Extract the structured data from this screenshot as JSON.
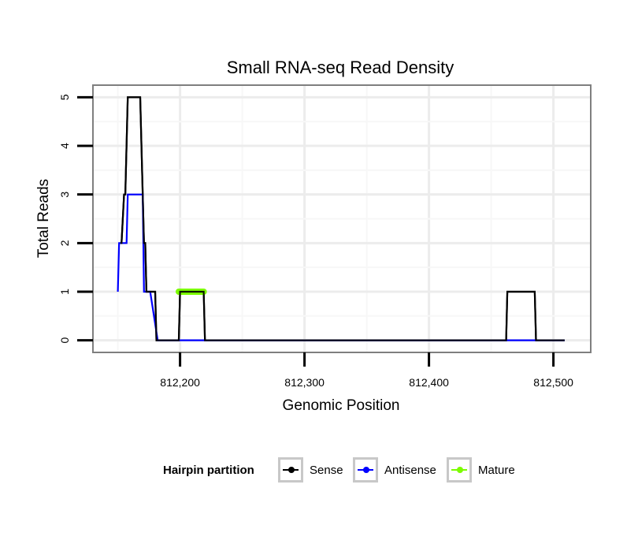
{
  "chart_data": {
    "type": "line",
    "title": "Small RNA-seq Read Density",
    "xlabel": "Genomic Position",
    "ylabel": "Total Reads",
    "xlim": [
      812130,
      812530
    ],
    "ylim": [
      -0.25,
      5.25
    ],
    "x_ticks": [
      812200,
      812300,
      812400,
      812500
    ],
    "x_tick_labels": [
      "812,200",
      "812,300",
      "812,400",
      "812,500"
    ],
    "y_ticks": [
      0,
      1,
      2,
      3,
      4,
      5
    ],
    "y_tick_labels": [
      "0",
      "1",
      "2",
      "3",
      "4",
      "5"
    ],
    "grid": true,
    "legend_position": "bottom",
    "legend_title": "Hairpin partition",
    "series": [
      {
        "name": "Sense",
        "color": "#000000",
        "x": [
          812152,
          812153,
          812155,
          812156,
          812158,
          812168,
          812170,
          812171,
          812172,
          812173,
          812180,
          812181,
          812182,
          812199,
          812200,
          812219,
          812220,
          812462,
          812463,
          812485,
          812486,
          812509
        ],
        "y": [
          2,
          2,
          3,
          3,
          5,
          5,
          3,
          2,
          2,
          1,
          1,
          0,
          0,
          0,
          1,
          1,
          0,
          0,
          1,
          1,
          0,
          0
        ]
      },
      {
        "name": "Antisense",
        "color": "#0000ff",
        "x": [
          812150,
          812151,
          812157,
          812158,
          812170,
          812171,
          812176,
          812182,
          812509
        ],
        "y": [
          1,
          2,
          2,
          3,
          3,
          1,
          1,
          0,
          0
        ]
      },
      {
        "name": "Mature",
        "color": "#7cfc00",
        "x": [
          812199,
          812219
        ],
        "y": [
          1,
          1
        ]
      }
    ]
  }
}
